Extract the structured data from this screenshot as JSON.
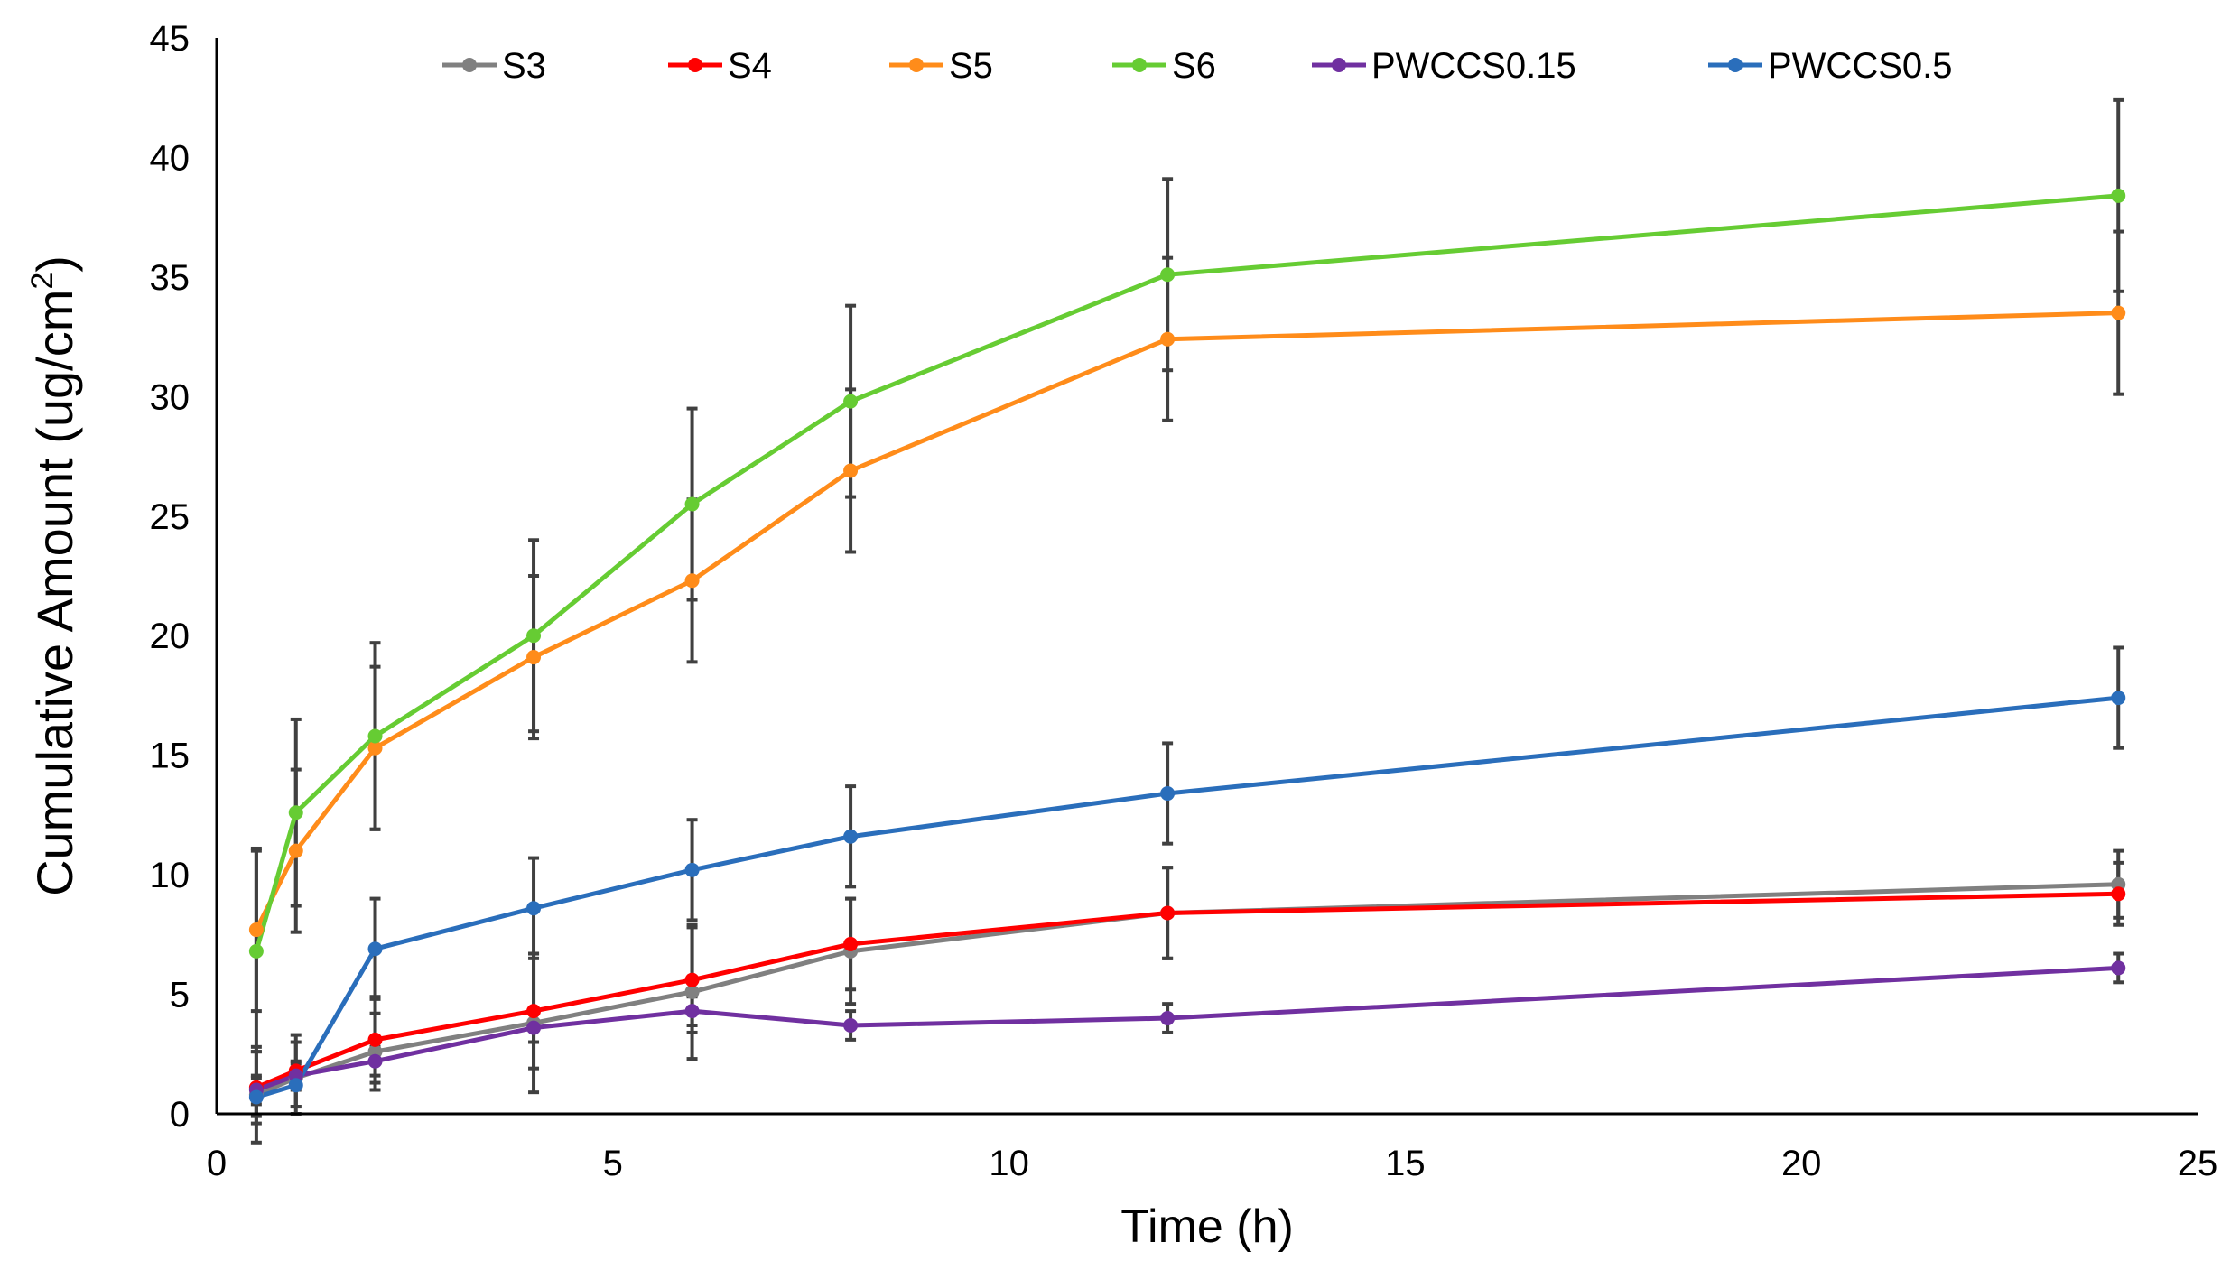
{
  "chart_data": {
    "type": "line",
    "title": "",
    "xlabel": "Time (h)",
    "ylabel": "Cumulative Amount (ug/cm",
    "ylabel_sup": "2",
    "ylabel_end": ")",
    "xlim": [
      0,
      25
    ],
    "ylim": [
      0,
      45
    ],
    "xticks": [
      0,
      5,
      10,
      15,
      20,
      25
    ],
    "yticks": [
      0,
      5,
      10,
      15,
      20,
      25,
      30,
      35,
      40,
      45
    ],
    "grid": false,
    "legend_position": "top",
    "x": [
      0.5,
      1,
      2,
      4,
      6,
      8,
      12,
      24
    ],
    "series": [
      {
        "name": "S3",
        "color": "#808080",
        "values": [
          0.8,
          1.5,
          2.6,
          3.8,
          5.1,
          6.8,
          8.4,
          9.6
        ],
        "errors": [
          2.0,
          1.5,
          1.6,
          2.9,
          2.8,
          2.2,
          1.9,
          1.4
        ]
      },
      {
        "name": "S4",
        "color": "#ff0000",
        "values": [
          1.1,
          1.8,
          3.1,
          4.3,
          5.6,
          7.1,
          8.4,
          9.2
        ],
        "errors": [
          1.5,
          1.5,
          1.8,
          2.4,
          2.2,
          1.9,
          1.9,
          1.3
        ]
      },
      {
        "name": "S5",
        "color": "#ff8c1a",
        "values": [
          7.7,
          11.0,
          15.3,
          19.1,
          22.3,
          26.9,
          32.4,
          33.5
        ],
        "errors": [
          3.4,
          3.4,
          3.4,
          3.4,
          3.4,
          3.4,
          3.4,
          3.4
        ]
      },
      {
        "name": "S6",
        "color": "#66cc33",
        "values": [
          6.8,
          12.6,
          15.8,
          20.0,
          25.5,
          29.8,
          35.1,
          38.4
        ],
        "errors": [
          4.2,
          3.9,
          3.9,
          4.0,
          4.0,
          4.0,
          4.0,
          4.0
        ]
      },
      {
        "name": "PWCCS0.15",
        "color": "#7030a0",
        "values": [
          1.0,
          1.6,
          2.2,
          3.6,
          4.3,
          3.7,
          4.0,
          6.1
        ],
        "errors": [
          0.6,
          0.6,
          0.6,
          0.6,
          0.6,
          0.6,
          0.6,
          0.6
        ]
      },
      {
        "name": "PWCCS0.5",
        "color": "#2a6ebb",
        "values": [
          0.7,
          1.2,
          6.9,
          8.6,
          10.2,
          11.6,
          13.4,
          17.4
        ],
        "errors": [
          0.8,
          0.9,
          2.1,
          2.1,
          2.1,
          2.1,
          2.1,
          2.1
        ]
      }
    ]
  }
}
